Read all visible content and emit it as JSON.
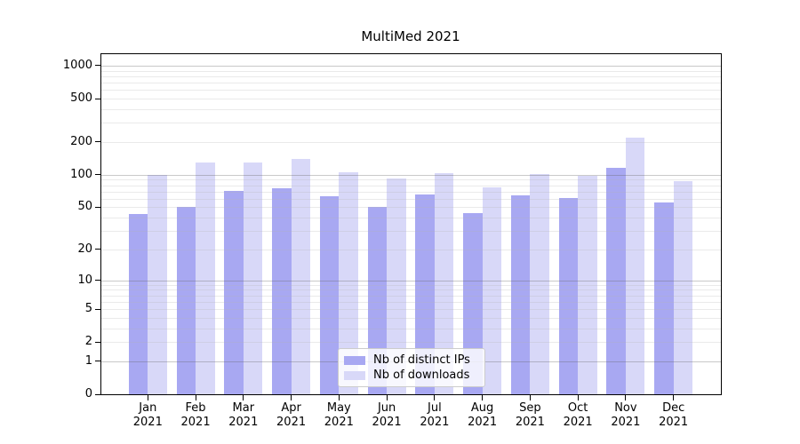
{
  "title": "MultiMed 2021",
  "chart_data": {
    "type": "bar",
    "title": "MultiMed 2021",
    "yscale": "log1p",
    "ylim": [
      0,
      1200
    ],
    "y_ticks": [
      0,
      1,
      2,
      5,
      10,
      20,
      50,
      100,
      200,
      500,
      1000
    ],
    "grid": "horizontal, major and minor, on",
    "legend_position": "lower center inside plot",
    "categories": [
      "Jan 2021",
      "Feb 2021",
      "Mar 2021",
      "Apr 2021",
      "May 2021",
      "Jun 2021",
      "Jul 2021",
      "Aug 2021",
      "Sep 2021",
      "Oct 2021",
      "Nov 2021",
      "Dec 2021"
    ],
    "series": [
      {
        "name": "Nb of distinct IPs",
        "color": "#a8a8f2",
        "values": [
          43,
          50,
          71,
          75,
          63,
          50,
          66,
          44,
          65,
          61,
          116,
          55
        ]
      },
      {
        "name": "Nb of downloads",
        "color": "#d8d8f8",
        "values": [
          100,
          130,
          130,
          141,
          106,
          92,
          103,
          77,
          101,
          98,
          220,
          88
        ]
      }
    ]
  },
  "colors": {
    "major_grid": "#b0b0b0",
    "minor_grid": "#eaeaea",
    "spine": "#000000",
    "legend_border": "#cccccc",
    "background": "#ffffff"
  }
}
